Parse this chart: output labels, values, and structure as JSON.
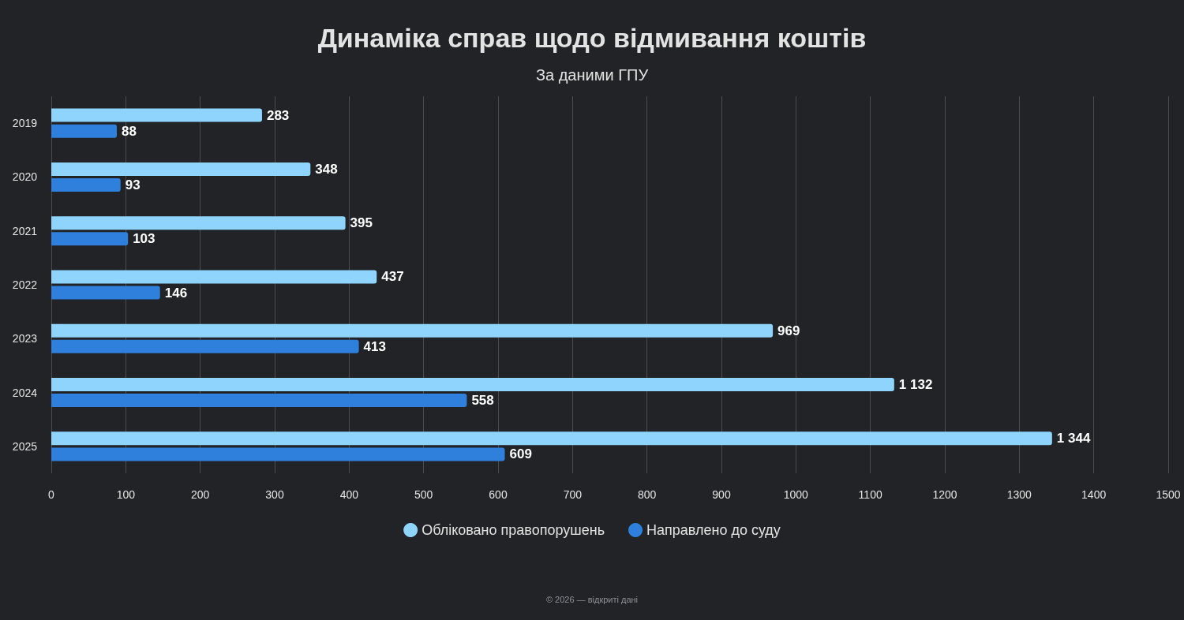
{
  "chart_data": {
    "type": "bar",
    "orientation": "horizontal",
    "title": "Динаміка справ щодо відмивання коштів",
    "subtitle": "За даними ГПУ",
    "categories": [
      "2019",
      "2020",
      "2021",
      "2022",
      "2023",
      "2024",
      "2025"
    ],
    "series": [
      {
        "name": "Обліковано правопорушень",
        "color": "#8fd4fd",
        "values": [
          283,
          348,
          395,
          437,
          969,
          1132,
          1344
        ],
        "value_labels": [
          "283",
          "348",
          "395",
          "437",
          "969",
          "1 132",
          "1 344"
        ]
      },
      {
        "name": "Направлено до суду",
        "color": "#2f80dc",
        "values": [
          88,
          93,
          103,
          146,
          413,
          558,
          609
        ],
        "value_labels": [
          "88",
          "93",
          "103",
          "146",
          "413",
          "558",
          "609"
        ]
      }
    ],
    "xlim": [
      0,
      1500
    ],
    "xticks": [
      0,
      100,
      200,
      300,
      400,
      500,
      600,
      700,
      800,
      900,
      1000,
      1100,
      1200,
      1300,
      1400,
      1500
    ],
    "grid": "x",
    "legend": "bottom",
    "annotations": [
      "© 2026 — відкриті дані"
    ]
  }
}
